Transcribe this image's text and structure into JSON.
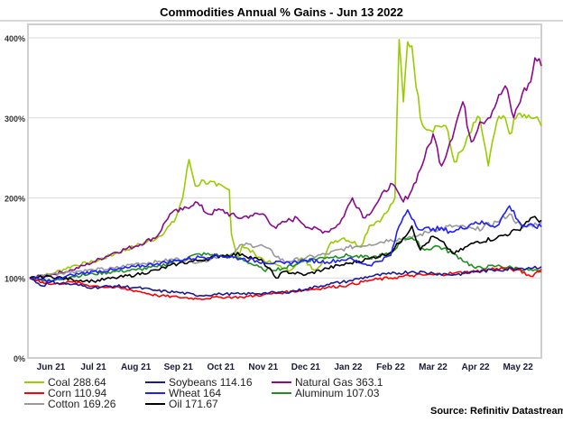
{
  "chart_data": {
    "type": "line",
    "title": "Commodities Annual % Gains - Jun 13 2022",
    "xlabel": "",
    "ylabel": "",
    "ylim": [
      0,
      400
    ],
    "yticks": [
      "0%",
      "100%",
      "200%",
      "300%",
      "400%"
    ],
    "ytick_values": [
      0,
      100,
      200,
      300,
      400
    ],
    "xticks": [
      "Jun 21",
      "Jul 21",
      "Aug 21",
      "Sep 21",
      "Oct 21",
      "Nov 21",
      "Dec 21",
      "Jan 22",
      "Feb 22",
      "Mar 22",
      "Apr 22",
      "May 22"
    ],
    "xtick_positions": [
      0.5,
      1.5,
      2.5,
      3.5,
      4.5,
      5.5,
      6.5,
      7.5,
      8.5,
      9.5,
      10.5,
      11.5
    ],
    "xlim": [
      0,
      12.05
    ],
    "grid": "horizontal",
    "legend_position": "bottom",
    "source": "Source: Refinitiv Datastream",
    "series": [
      {
        "name": "Coal",
        "legend": "Coal 288.64",
        "color": "#99cc00",
        "x": [
          0,
          0.5,
          1,
          1.5,
          2,
          2.5,
          3,
          3.4,
          3.6,
          3.75,
          3.9,
          4.1,
          4.4,
          4.7,
          4.75,
          4.9,
          5.0,
          5.3,
          5.6,
          5.9,
          6.1,
          6.4,
          6.7,
          6.9,
          7.1,
          7.4,
          7.8,
          8.0,
          8.3,
          8.45,
          8.6,
          8.7,
          8.8,
          8.9,
          9.0,
          9.2,
          9.4,
          9.6,
          9.8,
          10.0,
          10.2,
          10.5,
          10.6,
          10.8,
          11.0,
          11.2,
          11.3,
          11.5,
          11.7,
          11.9,
          12.05
        ],
        "y": [
          100,
          105,
          115,
          120,
          130,
          140,
          150,
          170,
          200,
          248,
          215,
          222,
          215,
          210,
          155,
          125,
          140,
          130,
          120,
          115,
          108,
          125,
          110,
          120,
          145,
          150,
          140,
          165,
          175,
          185,
          200,
          398,
          320,
          395,
          390,
          300,
          285,
          290,
          290,
          245,
          260,
          295,
          300,
          240,
          295,
          300,
          280,
          305,
          300,
          300,
          290
        ]
      },
      {
        "name": "Corn",
        "legend": "Corn 110.94",
        "color": "#ff0000",
        "x": [
          0,
          0.5,
          1,
          1.5,
          2,
          2.5,
          3,
          3.5,
          4,
          4.5,
          5,
          5.5,
          6,
          6.5,
          7,
          7.5,
          8,
          8.5,
          9,
          9.5,
          10,
          10.5,
          11,
          11.5,
          11.8,
          12.05
        ],
        "y": [
          100,
          92,
          95,
          90,
          88,
          84,
          78,
          76,
          74,
          76,
          76,
          79,
          82,
          85,
          88,
          91,
          97,
          100,
          103,
          104,
          106,
          108,
          112,
          110,
          102,
          111
        ]
      },
      {
        "name": "Cotton",
        "legend": "Cotton 169.26",
        "color": "#999999",
        "x": [
          0,
          0.5,
          1,
          1.5,
          2,
          2.5,
          3,
          3.5,
          4,
          4.5,
          4.8,
          5.0,
          5.5,
          6,
          6.5,
          7,
          7.5,
          8,
          8.5,
          9,
          9.5,
          10,
          10.5,
          11,
          11.3,
          11.6,
          12.05
        ],
        "y": [
          100,
          105,
          108,
          110,
          112,
          118,
          120,
          124,
          120,
          128,
          130,
          142,
          140,
          120,
          125,
          130,
          138,
          142,
          148,
          150,
          160,
          165,
          160,
          170,
          180,
          162,
          170
        ]
      },
      {
        "name": "Soybeans",
        "legend": "Soybeans 114.16",
        "color": "#1a1a99",
        "x": [
          0,
          0.3,
          0.5,
          1,
          1.5,
          2,
          2.5,
          3,
          3.5,
          4,
          4.5,
          5,
          5.5,
          6,
          6.5,
          7,
          7.5,
          8,
          8.5,
          9,
          9.5,
          10,
          10.5,
          11,
          11.5,
          12.05
        ],
        "y": [
          100,
          90,
          95,
          92,
          88,
          90,
          88,
          84,
          82,
          78,
          80,
          80,
          81,
          82,
          86,
          92,
          96,
          102,
          105,
          108,
          106,
          104,
          108,
          110,
          112,
          114
        ]
      },
      {
        "name": "Wheat",
        "legend": "Wheat 164",
        "color": "#1f1fff",
        "x": [
          0,
          0.5,
          1,
          1.5,
          2,
          2.5,
          3,
          3.5,
          4,
          4.5,
          5,
          5.5,
          6,
          6.5,
          7,
          7.5,
          8,
          8.5,
          8.7,
          8.9,
          9.2,
          9.5,
          10,
          10.5,
          11,
          11.3,
          11.6,
          12.05
        ],
        "y": [
          100,
          96,
          104,
          108,
          110,
          114,
          118,
          122,
          126,
          128,
          124,
          120,
          118,
          122,
          120,
          124,
          116,
          128,
          165,
          185,
          160,
          162,
          158,
          170,
          165,
          190,
          165,
          164
        ]
      },
      {
        "name": "Oil",
        "legend": "Oil 171.67",
        "color": "#000000",
        "x": [
          0,
          0.5,
          1,
          1.5,
          2,
          2.5,
          3,
          3.5,
          4,
          4.5,
          5,
          5.5,
          5.8,
          6,
          6.5,
          7,
          7.5,
          8,
          8.5,
          8.8,
          9.0,
          9.2,
          9.5,
          9.8,
          10,
          10.5,
          11,
          11.5,
          11.8,
          12.05
        ],
        "y": [
          100,
          102,
          98,
          96,
          100,
          104,
          110,
          118,
          122,
          128,
          130,
          120,
          100,
          108,
          104,
          112,
          118,
          124,
          132,
          150,
          165,
          135,
          152,
          140,
          130,
          145,
          150,
          160,
          175,
          172
        ]
      },
      {
        "name": "Natural Gas",
        "legend": "Natural Gas 363.1",
        "color": "#8b0a8b",
        "x": [
          0,
          0.5,
          1,
          1.5,
          2,
          2.5,
          3,
          3.3,
          3.6,
          3.9,
          4.2,
          4.5,
          4.9,
          5.2,
          5.5,
          5.8,
          6,
          6.3,
          6.6,
          7,
          7.3,
          7.6,
          7.9,
          8.2,
          8.5,
          8.8,
          9.0,
          9.3,
          9.5,
          9.7,
          9.9,
          10.2,
          10.4,
          10.6,
          10.8,
          11.0,
          11.2,
          11.4,
          11.6,
          11.8,
          11.9,
          12.05
        ],
        "y": [
          100,
          104,
          110,
          120,
          132,
          140,
          152,
          180,
          185,
          195,
          180,
          185,
          175,
          178,
          180,
          162,
          170,
          175,
          162,
          158,
          168,
          200,
          175,
          195,
          218,
          195,
          210,
          250,
          280,
          240,
          270,
          320,
          270,
          295,
          300,
          320,
          340,
          300,
          330,
          345,
          375,
          365
        ]
      },
      {
        "name": "Aluminum",
        "legend": "Aluminum 107.03",
        "color": "#1f8f1f",
        "x": [
          0,
          0.5,
          1,
          1.5,
          2,
          2.5,
          3,
          3.5,
          4,
          4.5,
          5,
          5.5,
          6,
          6.5,
          7,
          7.5,
          8,
          8.5,
          8.8,
          9.0,
          9.3,
          9.6,
          10,
          10.5,
          11,
          11.5,
          12.05
        ],
        "y": [
          100,
          96,
          102,
          105,
          108,
          110,
          114,
          122,
          130,
          128,
          124,
          110,
          112,
          122,
          126,
          128,
          125,
          130,
          150,
          150,
          135,
          140,
          130,
          112,
          115,
          112,
          107
        ]
      }
    ]
  },
  "legend": {
    "items": [
      "Coal 288.64",
      "Corn 110.94",
      "Cotton 169.26",
      "Soybeans 114.16",
      "Wheat 164",
      "Oil 171.67",
      "Natural Gas 363.1",
      "Aluminum 107.03"
    ]
  }
}
